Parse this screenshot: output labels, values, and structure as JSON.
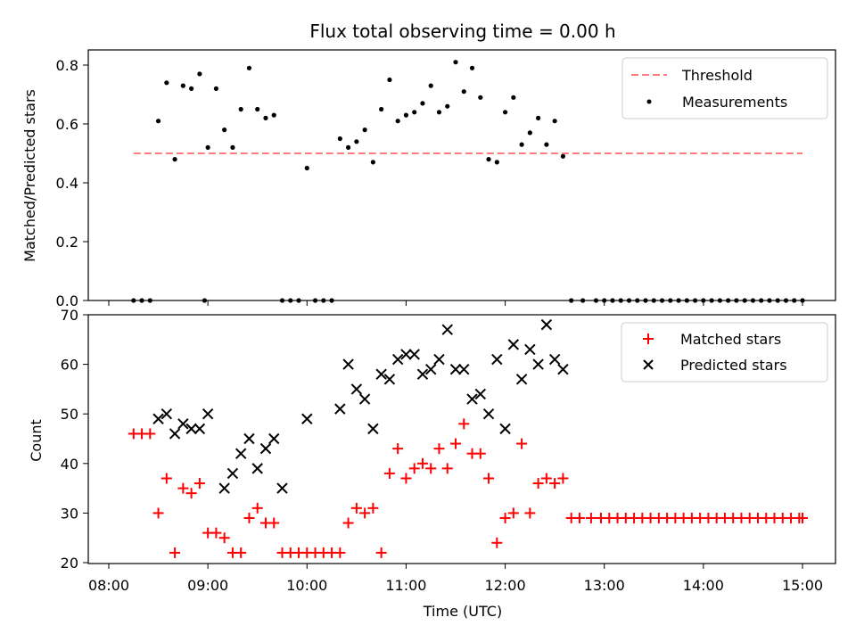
{
  "chart_data": [
    {
      "type": "scatter",
      "title": "Flux total observing time = 0.00 h",
      "xlabel": "",
      "ylabel": "Matched/Predicted stars",
      "xlim": [
        "08:00",
        "15:00"
      ],
      "ylim": [
        0,
        0.85
      ],
      "yticks": [
        "0.0",
        "0.2",
        "0.4",
        "0.6",
        "0.8"
      ],
      "yticks_values": [
        0,
        0.2,
        0.4,
        0.6,
        0.8
      ],
      "legend": {
        "position": "top-right",
        "entries": [
          "Threshold",
          "Measurements"
        ]
      },
      "threshold": {
        "name": "Threshold",
        "value": 0.5,
        "x_start": "08:15",
        "x_end": "15:00",
        "color": "#ff7f7f",
        "style": "dashed"
      },
      "series": [
        {
          "name": "Measurements",
          "color": "#000000",
          "marker": "dot",
          "points": [
            [
              "08:15",
              0
            ],
            [
              "08:20",
              0
            ],
            [
              "08:25",
              0
            ],
            [
              "08:30",
              0.61
            ],
            [
              "08:35",
              0.74
            ],
            [
              "08:40",
              0.48
            ],
            [
              "08:45",
              0.73
            ],
            [
              "08:50",
              0.72
            ],
            [
              "08:55",
              0.77
            ],
            [
              "09:00",
              0.52
            ],
            [
              "08:58",
              0
            ],
            [
              "09:05",
              0.72
            ],
            [
              "09:10",
              0.58
            ],
            [
              "09:15",
              0.52
            ],
            [
              "09:20",
              0.65
            ],
            [
              "09:25",
              0.79
            ],
            [
              "09:30",
              0.65
            ],
            [
              "09:35",
              0.62
            ],
            [
              "09:40",
              0.63
            ],
            [
              "09:45",
              0
            ],
            [
              "09:50",
              0
            ],
            [
              "09:55",
              0
            ],
            [
              "10:00",
              0.45
            ],
            [
              "10:05",
              0
            ],
            [
              "10:10",
              0
            ],
            [
              "10:15",
              0
            ],
            [
              "10:20",
              0.55
            ],
            [
              "10:25",
              0.52
            ],
            [
              "10:30",
              0.54
            ],
            [
              "10:35",
              0.58
            ],
            [
              "10:40",
              0.47
            ],
            [
              "10:45",
              0.65
            ],
            [
              "10:50",
              0.75
            ],
            [
              "10:55",
              0.61
            ],
            [
              "11:00",
              0.63
            ],
            [
              "11:05",
              0.64
            ],
            [
              "11:10",
              0.67
            ],
            [
              "11:15",
              0.73
            ],
            [
              "11:20",
              0.64
            ],
            [
              "11:25",
              0.66
            ],
            [
              "11:30",
              0.81
            ],
            [
              "11:35",
              0.71
            ],
            [
              "11:40",
              0.79
            ],
            [
              "11:45",
              0.69
            ],
            [
              "11:50",
              0.48
            ],
            [
              "11:55",
              0.47
            ],
            [
              "12:00",
              0.64
            ],
            [
              "12:05",
              0.69
            ],
            [
              "12:10",
              0.53
            ],
            [
              "12:15",
              0.57
            ],
            [
              "12:20",
              0.62
            ],
            [
              "12:25",
              0.53
            ],
            [
              "12:30",
              0.61
            ],
            [
              "12:35",
              0.49
            ],
            [
              "12:40",
              0
            ],
            [
              "12:47",
              0
            ],
            [
              "12:55",
              0
            ],
            [
              "13:00",
              0
            ],
            [
              "13:05",
              0
            ],
            [
              "13:10",
              0
            ],
            [
              "13:15",
              0
            ],
            [
              "13:20",
              0
            ],
            [
              "13:25",
              0
            ],
            [
              "13:30",
              0
            ],
            [
              "13:35",
              0
            ],
            [
              "13:40",
              0
            ],
            [
              "13:45",
              0
            ],
            [
              "13:50",
              0
            ],
            [
              "13:55",
              0
            ],
            [
              "14:00",
              0
            ],
            [
              "14:05",
              0
            ],
            [
              "14:10",
              0
            ],
            [
              "14:15",
              0
            ],
            [
              "14:20",
              0
            ],
            [
              "14:25",
              0
            ],
            [
              "14:30",
              0
            ],
            [
              "14:35",
              0
            ],
            [
              "14:40",
              0
            ],
            [
              "14:45",
              0
            ],
            [
              "14:50",
              0
            ],
            [
              "14:55",
              0
            ],
            [
              "15:00",
              0
            ]
          ]
        }
      ]
    },
    {
      "type": "scatter",
      "title": "",
      "xlabel": "Time (UTC)",
      "ylabel": "Count",
      "xlim": [
        "08:00",
        "15:00"
      ],
      "ylim": [
        20,
        70
      ],
      "xticks": [
        "08:00",
        "09:00",
        "10:00",
        "11:00",
        "12:00",
        "13:00",
        "14:00",
        "15:00"
      ],
      "yticks": [
        "20",
        "30",
        "40",
        "50",
        "60",
        "70"
      ],
      "yticks_values": [
        20,
        30,
        40,
        50,
        60,
        70
      ],
      "legend": {
        "position": "top-right",
        "entries": [
          "Matched stars",
          "Predicted stars"
        ]
      },
      "series": [
        {
          "name": "Matched stars",
          "color": "#ff0000",
          "marker": "plus",
          "points": [
            [
              "08:15",
              46
            ],
            [
              "08:20",
              46
            ],
            [
              "08:25",
              46
            ],
            [
              "08:30",
              30
            ],
            [
              "08:35",
              37
            ],
            [
              "08:40",
              22
            ],
            [
              "08:45",
              35
            ],
            [
              "08:50",
              34
            ],
            [
              "08:55",
              36
            ],
            [
              "09:00",
              26
            ],
            [
              "09:05",
              26
            ],
            [
              "09:10",
              25
            ],
            [
              "09:15",
              22
            ],
            [
              "09:20",
              22
            ],
            [
              "09:25",
              29
            ],
            [
              "09:30",
              31
            ],
            [
              "09:35",
              28
            ],
            [
              "09:40",
              28
            ],
            [
              "09:45",
              22
            ],
            [
              "09:50",
              22
            ],
            [
              "09:55",
              22
            ],
            [
              "10:00",
              22
            ],
            [
              "10:05",
              22
            ],
            [
              "10:10",
              22
            ],
            [
              "10:15",
              22
            ],
            [
              "10:20",
              22
            ],
            [
              "10:25",
              28
            ],
            [
              "10:30",
              31
            ],
            [
              "10:35",
              30
            ],
            [
              "10:40",
              31
            ],
            [
              "10:45",
              22
            ],
            [
              "10:50",
              38
            ],
            [
              "10:55",
              43
            ],
            [
              "11:00",
              37
            ],
            [
              "11:05",
              39
            ],
            [
              "11:10",
              40
            ],
            [
              "11:15",
              39
            ],
            [
              "11:20",
              43
            ],
            [
              "11:25",
              39
            ],
            [
              "11:30",
              44
            ],
            [
              "11:35",
              48
            ],
            [
              "11:40",
              42
            ],
            [
              "11:45",
              42
            ],
            [
              "11:50",
              37
            ],
            [
              "11:55",
              24
            ],
            [
              "12:00",
              29
            ],
            [
              "12:05",
              30
            ],
            [
              "12:10",
              44
            ],
            [
              "12:15",
              30
            ],
            [
              "12:20",
              36
            ],
            [
              "12:25",
              37
            ],
            [
              "12:30",
              36
            ],
            [
              "12:35",
              37
            ],
            [
              "12:40",
              29
            ],
            [
              "12:45",
              29
            ],
            [
              "12:52",
              29
            ],
            [
              "12:58",
              29
            ],
            [
              "13:03",
              29
            ],
            [
              "13:08",
              29
            ],
            [
              "13:13",
              29
            ],
            [
              "13:18",
              29
            ],
            [
              "13:23",
              29
            ],
            [
              "13:28",
              29
            ],
            [
              "13:33",
              29
            ],
            [
              "13:38",
              29
            ],
            [
              "13:43",
              29
            ],
            [
              "13:48",
              29
            ],
            [
              "13:53",
              29
            ],
            [
              "13:58",
              29
            ],
            [
              "14:03",
              29
            ],
            [
              "14:08",
              29
            ],
            [
              "14:13",
              29
            ],
            [
              "14:18",
              29
            ],
            [
              "14:23",
              29
            ],
            [
              "14:28",
              29
            ],
            [
              "14:33",
              29
            ],
            [
              "14:38",
              29
            ],
            [
              "14:43",
              29
            ],
            [
              "14:48",
              29
            ],
            [
              "14:53",
              29
            ],
            [
              "14:58",
              29
            ],
            [
              "15:00",
              29
            ]
          ]
        },
        {
          "name": "Predicted stars",
          "color": "#000000",
          "marker": "x",
          "points": [
            [
              "08:30",
              49
            ],
            [
              "08:35",
              50
            ],
            [
              "08:40",
              46
            ],
            [
              "08:45",
              48
            ],
            [
              "08:50",
              47
            ],
            [
              "08:55",
              47
            ],
            [
              "09:00",
              50
            ],
            [
              "09:10",
              35
            ],
            [
              "09:15",
              38
            ],
            [
              "09:20",
              42
            ],
            [
              "09:25",
              45
            ],
            [
              "09:30",
              39
            ],
            [
              "09:35",
              43
            ],
            [
              "09:40",
              45
            ],
            [
              "09:45",
              35
            ],
            [
              "10:00",
              49
            ],
            [
              "10:20",
              51
            ],
            [
              "10:25",
              60
            ],
            [
              "10:30",
              55
            ],
            [
              "10:35",
              53
            ],
            [
              "10:40",
              47
            ],
            [
              "10:45",
              58
            ],
            [
              "10:50",
              57
            ],
            [
              "10:55",
              61
            ],
            [
              "11:00",
              62
            ],
            [
              "11:05",
              62
            ],
            [
              "11:10",
              58
            ],
            [
              "11:15",
              59
            ],
            [
              "11:20",
              61
            ],
            [
              "11:25",
              67
            ],
            [
              "11:30",
              59
            ],
            [
              "11:35",
              59
            ],
            [
              "11:40",
              53
            ],
            [
              "11:45",
              54
            ],
            [
              "11:50",
              50
            ],
            [
              "11:55",
              61
            ],
            [
              "12:00",
              47
            ],
            [
              "12:05",
              64
            ],
            [
              "12:10",
              57
            ],
            [
              "12:15",
              63
            ],
            [
              "12:20",
              60
            ],
            [
              "12:25",
              68
            ],
            [
              "12:30",
              61
            ],
            [
              "12:35",
              59
            ]
          ]
        }
      ]
    }
  ]
}
